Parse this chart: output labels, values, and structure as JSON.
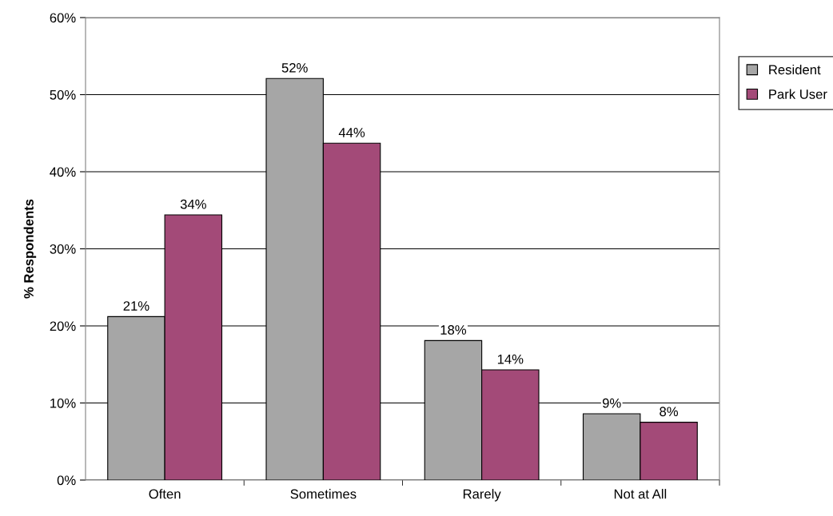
{
  "chart_data": {
    "type": "bar",
    "ylabel": "% Respondents",
    "categories": [
      "Often",
      "Sometimes",
      "Rarely",
      "Not at All"
    ],
    "series": [
      {
        "name": "Resident",
        "color": "#a6a6a6",
        "values": [
          21.2,
          52.1,
          18.1,
          8.6
        ],
        "value_labels": [
          "21%",
          "52%",
          "18%",
          "9%"
        ]
      },
      {
        "name": "Park User",
        "color": "#a34a78",
        "values": [
          34.4,
          43.7,
          14.3,
          7.5
        ],
        "value_labels": [
          "34%",
          "44%",
          "14%",
          "8%"
        ]
      }
    ],
    "ylim": [
      0,
      60
    ],
    "yticks": [
      {
        "value": 0,
        "label": "0%"
      },
      {
        "value": 10,
        "label": "10%"
      },
      {
        "value": 20,
        "label": "20%"
      },
      {
        "value": 30,
        "label": "30%"
      },
      {
        "value": 40,
        "label": "40%"
      },
      {
        "value": 50,
        "label": "50%"
      },
      {
        "value": 60,
        "label": "60%"
      }
    ],
    "grid": "y",
    "legend": "top right"
  }
}
